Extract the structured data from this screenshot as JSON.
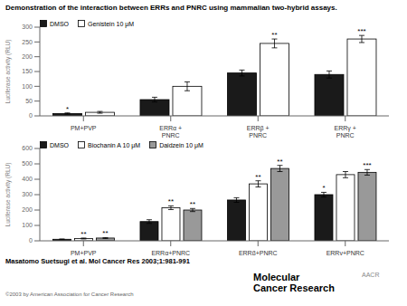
{
  "title": "Demonstration of the interaction between ERRs and PNRC using mammalian two-hybrid assays.",
  "annotations": [
    "Masatomo Suetsugi et al. Mol Cancer Res 2003;1:981-991",
    "©2003 by American Association for Cancer Research",
    "Molecular\nCancer Research",
    "AACR"
  ],
  "chart_data": [
    {
      "type": "bar",
      "categories": [
        "PM+PVP",
        "ERRα +\nPNRC",
        "ERRβ +\nPNRC",
        "ERRγ +\nPNRC"
      ],
      "series": [
        {
          "name": "DMSO",
          "color": "#1a1a1a",
          "values": [
            8,
            55,
            145,
            140
          ],
          "errors": [
            2,
            8,
            10,
            12
          ],
          "significance": [
            "*",
            null,
            null,
            null
          ]
        },
        {
          "name": "Genistein 10 μM",
          "color": "#ffffff",
          "values": [
            12,
            100,
            245,
            260
          ],
          "errors": [
            3,
            15,
            15,
            12
          ],
          "significance": [
            null,
            null,
            "**",
            "***"
          ]
        }
      ],
      "ylabel": "Luciferase activity (RLU)",
      "ylim": [
        0,
        300
      ],
      "yticks": [
        0,
        50,
        100,
        150,
        200,
        250,
        300
      ],
      "legend": "upper left"
    },
    {
      "type": "bar",
      "categories": [
        "PM+PVP",
        "ERRα+PNRC",
        "ERRβ+PNRC",
        "ERRγ+PNRC"
      ],
      "series": [
        {
          "name": "DMSO",
          "color": "#1a1a1a",
          "values": [
            10,
            125,
            265,
            300
          ],
          "errors": [
            2,
            12,
            15,
            15
          ],
          "significance": [
            null,
            null,
            null,
            "*"
          ]
        },
        {
          "name": "Biochanin A 10 μM",
          "color": "#ffffff",
          "values": [
            15,
            215,
            370,
            430
          ],
          "errors": [
            3,
            12,
            20,
            20
          ],
          "significance": [
            "**",
            "**",
            "**",
            null
          ]
        },
        {
          "name": "Daidzein 10 μM",
          "color": "#999999",
          "values": [
            18,
            200,
            470,
            445
          ],
          "errors": [
            3,
            10,
            20,
            18
          ],
          "significance": [
            "**",
            "**",
            "**",
            "***"
          ]
        }
      ],
      "ylabel": "Luciferase activity (RLU)",
      "ylim": [
        0,
        600
      ],
      "yticks": [
        0,
        100,
        200,
        300,
        400,
        500,
        600
      ],
      "legend": "upper left"
    }
  ]
}
